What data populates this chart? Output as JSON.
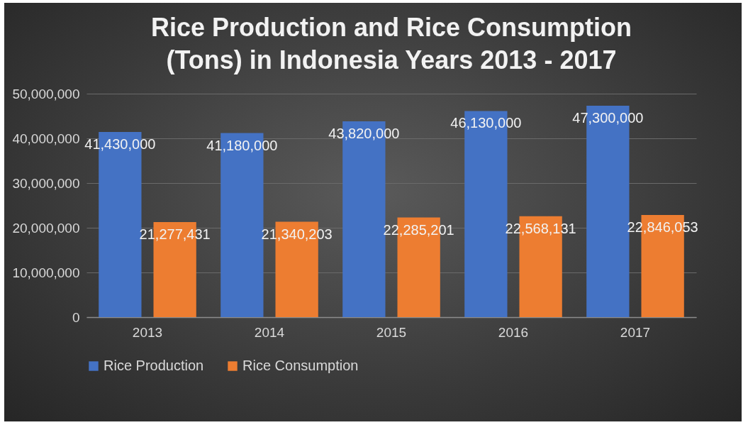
{
  "chart_data": {
    "type": "bar",
    "title": "Rice Production and Rice Consumption (Tons) in Indonesia Years 2013 - 2017",
    "categories": [
      "2013",
      "2014",
      "2015",
      "2016",
      "2017"
    ],
    "series": [
      {
        "name": "Rice Production",
        "color": "#4472c4",
        "values": [
          41430000,
          41180000,
          43820000,
          46130000,
          47300000
        ],
        "value_labels": [
          "41,430,000",
          "41,180,000",
          "43,820,000",
          "46,130,000",
          "47,300,000"
        ]
      },
      {
        "name": "Rice Consumption",
        "color": "#ed7d31",
        "values": [
          21277431,
          21340203,
          22285201,
          22568131,
          22846053
        ],
        "value_labels": [
          "21,277,431",
          "21,340,203",
          "22,285,201",
          "22,568,131",
          "22,846,053"
        ]
      }
    ],
    "ylim": [
      0,
      50000000
    ],
    "yticks": [
      0,
      {
        "value": 10000000,
        "label": "10,000,000"
      },
      {
        "value": 20000000,
        "label": "20,000,000"
      },
      {
        "value": 30000000,
        "label": "30,000,000"
      },
      {
        "value": 40000000,
        "label": "40,000,000"
      },
      {
        "value": 50000000,
        "label": "50,000,000"
      }
    ],
    "grid": "y",
    "legend": "bottom"
  }
}
